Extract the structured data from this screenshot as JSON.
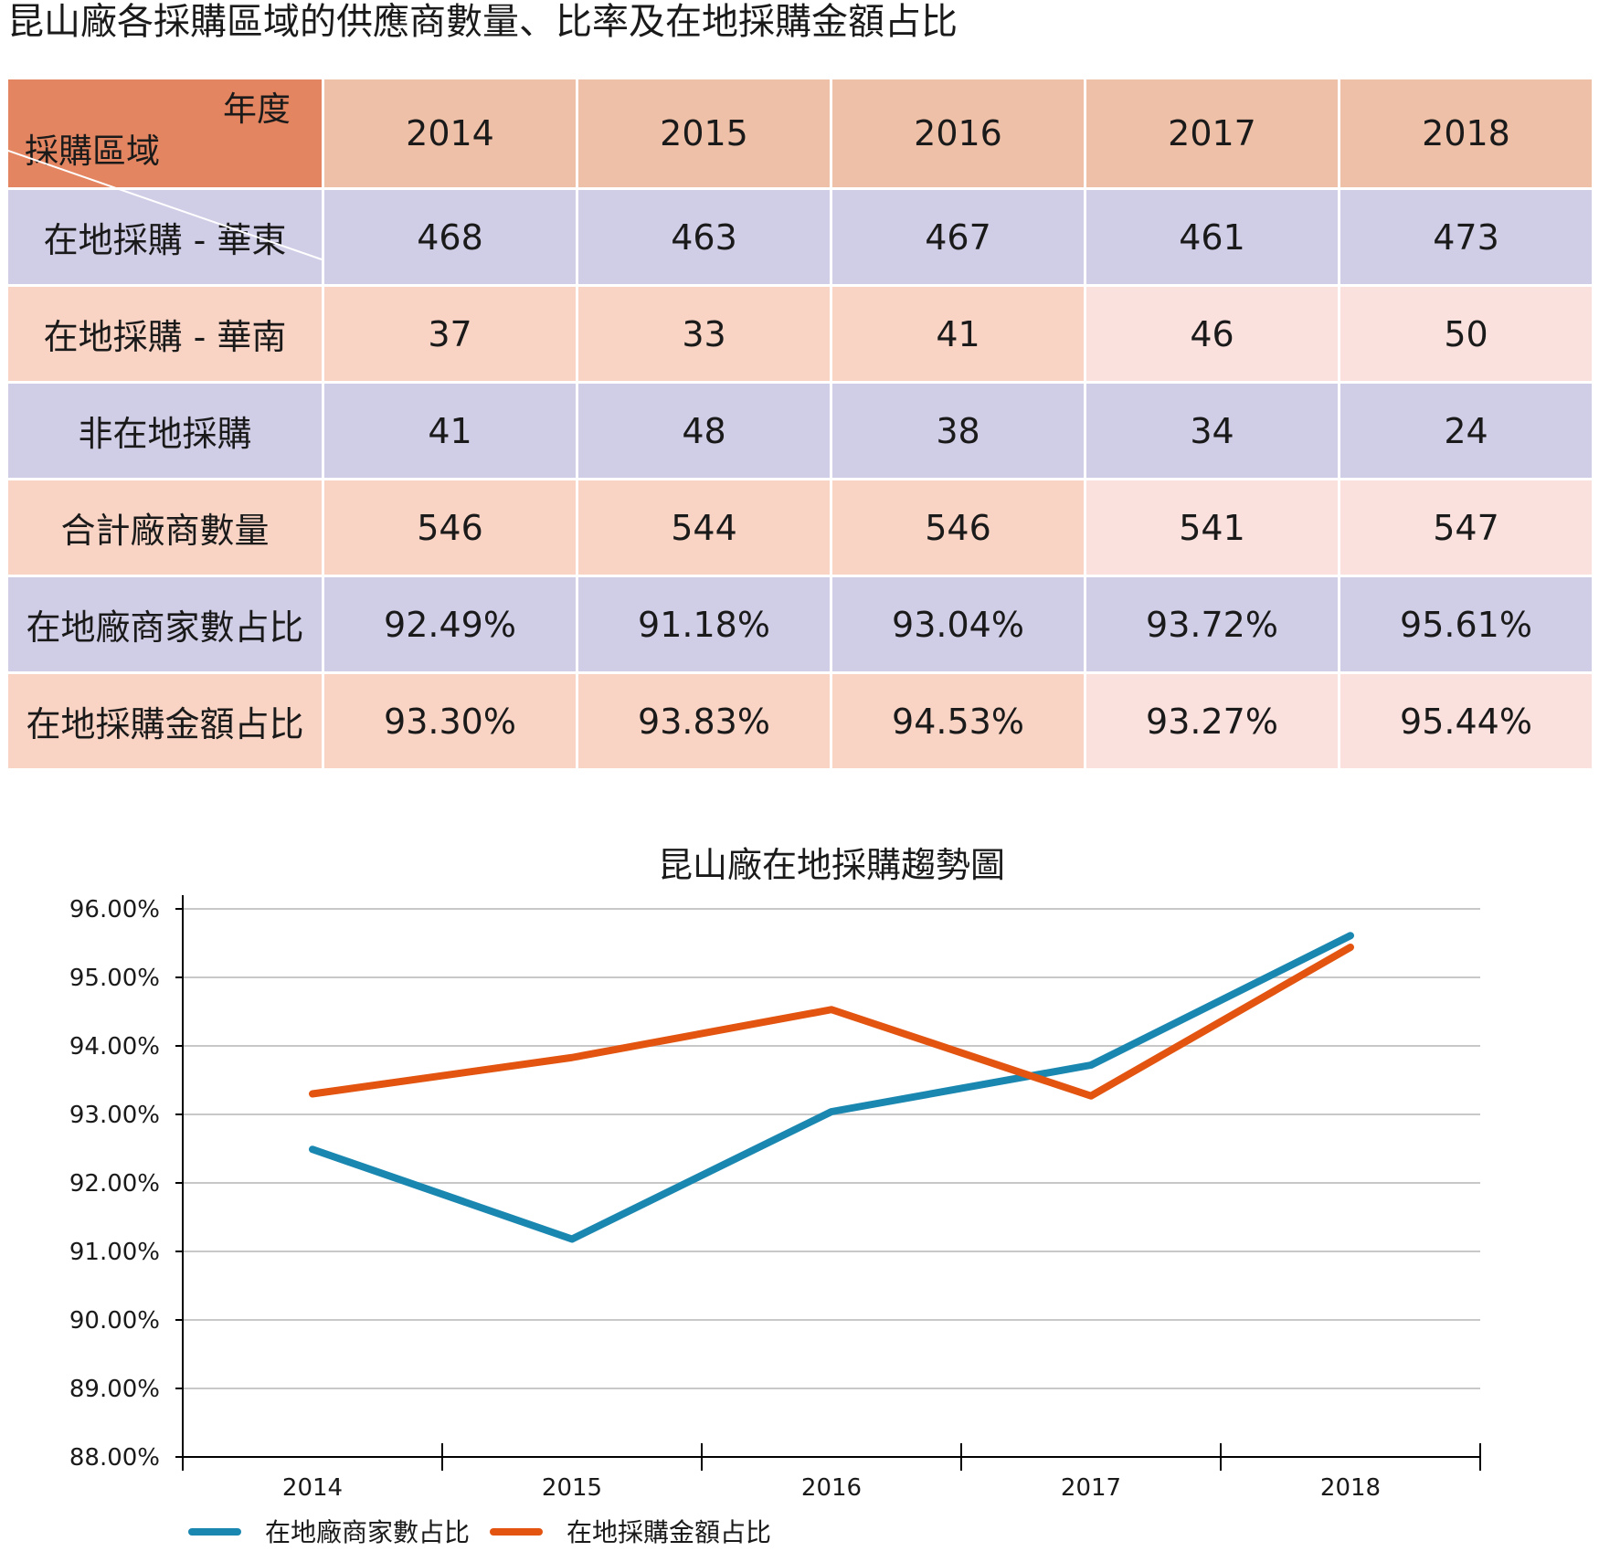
{
  "page_title": "昆山廠各採購區域的供應商數量、比率及在地採購金額占比",
  "table": {
    "corner_top": "年度",
    "corner_bottom": "採購區域",
    "years": [
      "2014",
      "2015",
      "2016",
      "2017",
      "2018"
    ],
    "rows": [
      {
        "label": "在地採購 - 華東",
        "values": [
          "468",
          "463",
          "467",
          "461",
          "473"
        ]
      },
      {
        "label": "在地採購 - 華南",
        "values": [
          "37",
          "33",
          "41",
          "46",
          "50"
        ]
      },
      {
        "label": "非在地採購",
        "values": [
          "41",
          "48",
          "38",
          "34",
          "24"
        ]
      },
      {
        "label": "合計廠商數量",
        "values": [
          "546",
          "544",
          "546",
          "541",
          "547"
        ]
      },
      {
        "label": "在地廠商家數占比",
        "values": [
          "92.49%",
          "91.18%",
          "93.04%",
          "93.72%",
          "95.61%"
        ]
      },
      {
        "label": "在地採購金額占比",
        "values": [
          "93.30%",
          "93.83%",
          "94.53%",
          "93.27%",
          "95.44%"
        ]
      }
    ]
  },
  "chart_data": {
    "type": "line",
    "title": "昆山廠在地採購趨勢圖",
    "categories": [
      "2014",
      "2015",
      "2016",
      "2017",
      "2018"
    ],
    "ylim": [
      88,
      96
    ],
    "yticks": [
      "88.00%",
      "89.00%",
      "90.00%",
      "91.00%",
      "92.00%",
      "93.00%",
      "94.00%",
      "95.00%",
      "96.00%"
    ],
    "grid": true,
    "legend_position": "bottom-left",
    "series": [
      {
        "name": "在地廠商家數占比",
        "color": "#1a87b0",
        "values": [
          92.49,
          91.18,
          93.04,
          93.72,
          95.61
        ]
      },
      {
        "name": "在地採購金額占比",
        "color": "#e25410",
        "values": [
          93.3,
          93.83,
          94.53,
          93.27,
          95.44
        ]
      }
    ]
  }
}
